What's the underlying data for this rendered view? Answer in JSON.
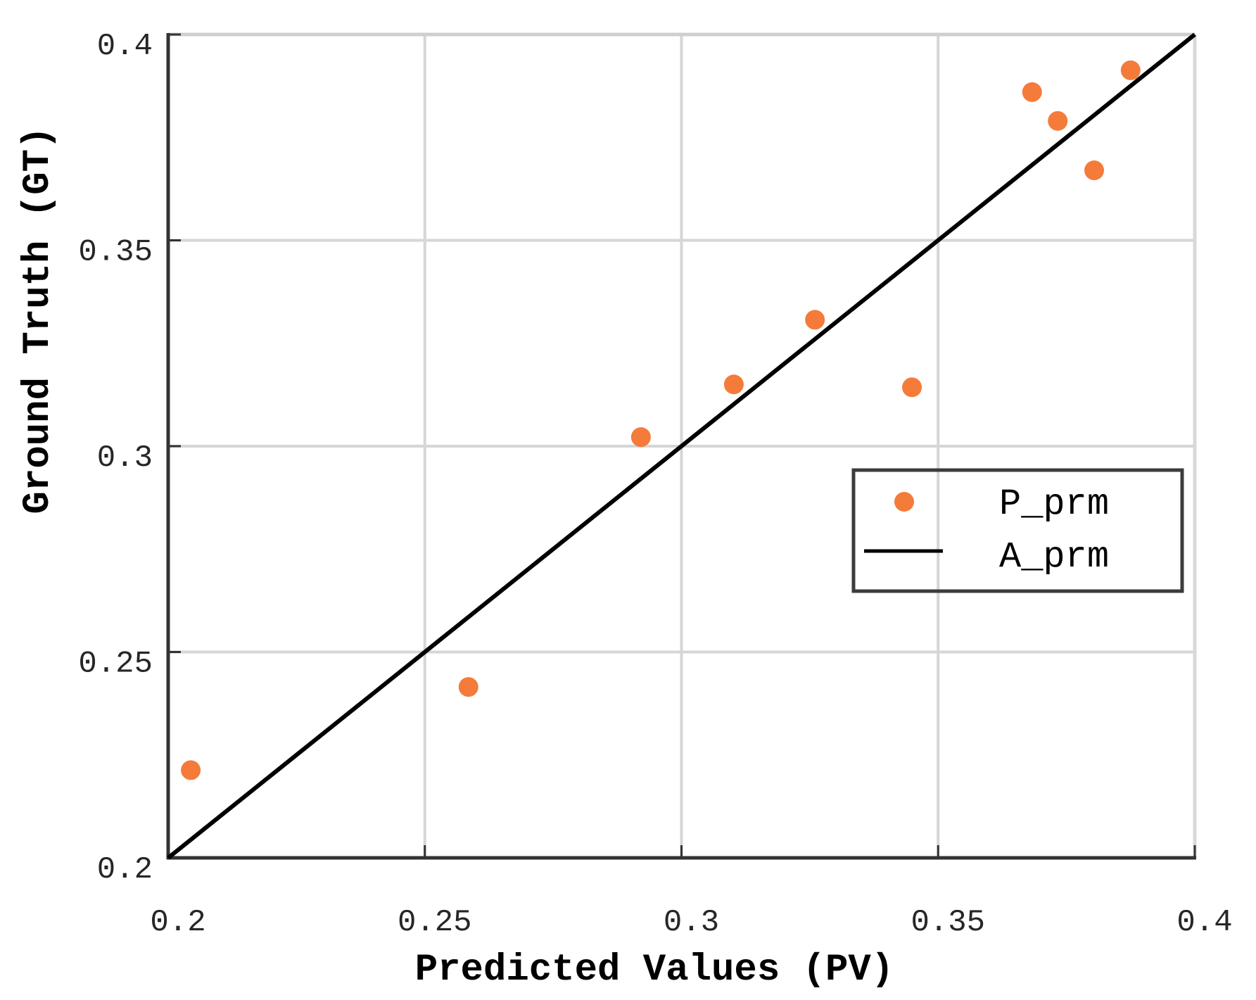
{
  "chart_data": {
    "type": "scatter",
    "title": "",
    "xlabel": "Predicted Values (PV)",
    "ylabel": "Ground Truth (GT)",
    "xlim": [
      0.2,
      0.4
    ],
    "ylim": [
      0.2,
      0.4
    ],
    "xticks": [
      0.2,
      0.25,
      0.3,
      0.35,
      0.4
    ],
    "yticks": [
      0.2,
      0.25,
      0.3,
      0.35,
      0.4
    ],
    "xtick_labels": [
      "0.2",
      "0.25",
      "0.3",
      "0.35",
      "0.4"
    ],
    "ytick_labels": [
      "0.2",
      "0.25",
      "0.3",
      "0.35",
      "0.4"
    ],
    "grid": true,
    "legend_position": "right-center (inside)",
    "series": [
      {
        "name": "P_prm",
        "type": "scatter",
        "color": "#F47B3A",
        "x": [
          0.2044,
          0.2585,
          0.2921,
          0.3102,
          0.326,
          0.3449,
          0.3683,
          0.3733,
          0.3804,
          0.3875
        ],
        "y": [
          0.2213,
          0.2415,
          0.3022,
          0.315,
          0.3307,
          0.3143,
          0.386,
          0.379,
          0.367,
          0.3913
        ]
      },
      {
        "name": "A_prm",
        "type": "line",
        "color": "#000000",
        "x": [
          0.2,
          0.4
        ],
        "y": [
          0.2,
          0.4
        ]
      }
    ]
  },
  "legend": {
    "items": [
      {
        "label": "P_prm",
        "symbol": "orange-dot"
      },
      {
        "label": "A_prm",
        "symbol": "black-line"
      }
    ]
  },
  "colors": {
    "marker": "#F47B3A",
    "line": "#000000",
    "grid": "#D6D6D6",
    "axis": "#333333"
  }
}
